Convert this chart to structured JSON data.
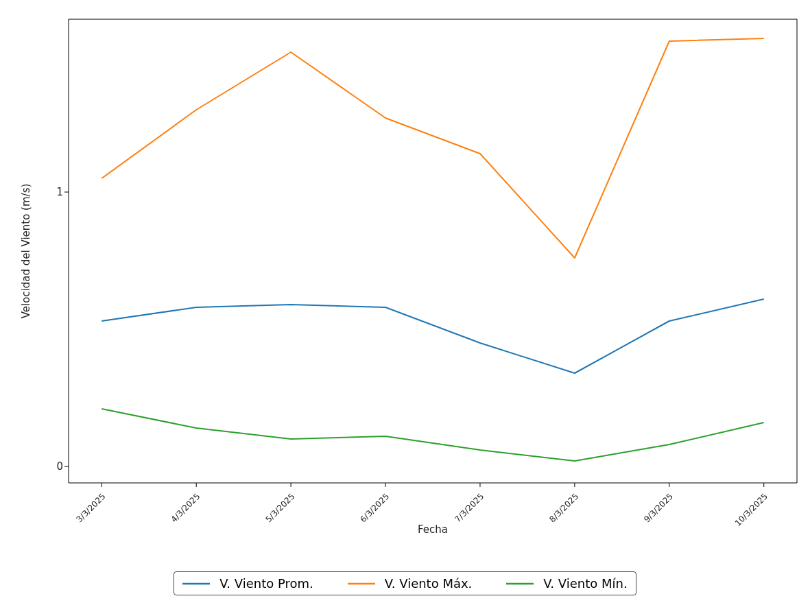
{
  "chart_data": {
    "type": "line",
    "xlabel": "Fecha",
    "ylabel": "Velocidad del Viento (m/s)",
    "categories": [
      "3/3/2025",
      "4/3/2025",
      "5/3/2025",
      "6/3/2025",
      "7/3/2025",
      "8/3/2025",
      "9/3/2025",
      "10/3/2025"
    ],
    "series": [
      {
        "name": "V. Viento Prom.",
        "color": "#1f77b4",
        "values": [
          0.53,
          0.58,
          0.59,
          0.58,
          0.45,
          0.34,
          0.53,
          0.61
        ]
      },
      {
        "name": "V. Viento Máx.",
        "color": "#ff7f0e",
        "values": [
          1.05,
          1.3,
          1.51,
          1.27,
          1.14,
          0.76,
          1.55,
          1.56
        ]
      },
      {
        "name": "V. Viento Mín.",
        "color": "#2ca02c",
        "values": [
          0.21,
          0.14,
          0.1,
          0.11,
          0.06,
          0.02,
          0.08,
          0.16
        ]
      }
    ],
    "ylim": [
      -0.06,
      1.63
    ],
    "yticks": [
      0,
      1
    ],
    "legend": "bottom",
    "marker": "none",
    "line_style": "solid"
  }
}
